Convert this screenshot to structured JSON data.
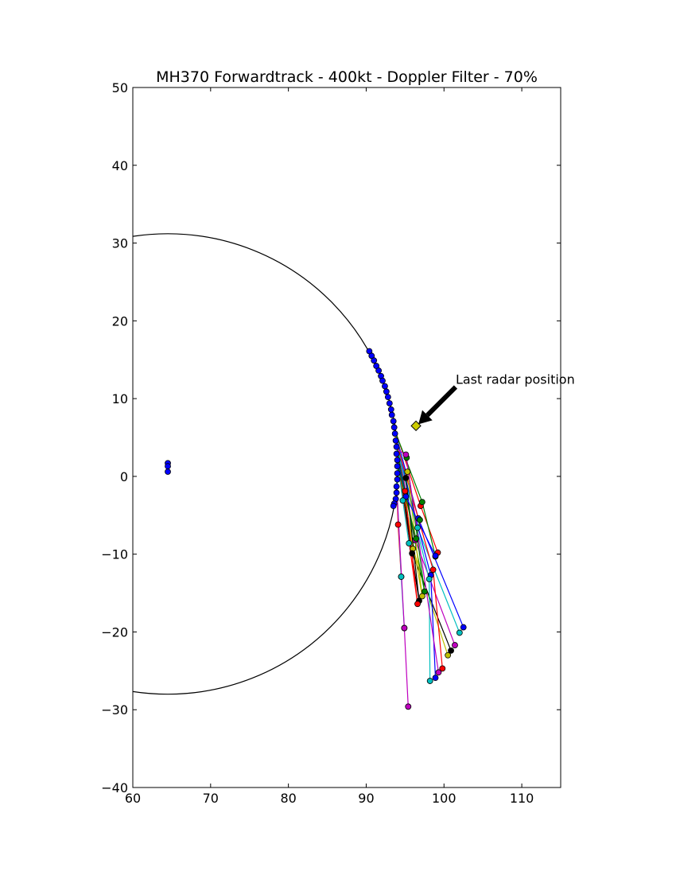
{
  "chart_data": {
    "type": "scatter",
    "title": "MH370 Forwardtrack - 400kt - Doppler Filter - 70%",
    "xlabel": "",
    "ylabel": "",
    "xlim": [
      60,
      115
    ],
    "ylim": [
      -40,
      50
    ],
    "xticks": [
      60,
      70,
      80,
      90,
      100,
      110
    ],
    "yticks": [
      -40,
      -30,
      -20,
      -10,
      0,
      10,
      20,
      30,
      40,
      50
    ],
    "yticklabels": [
      "−40",
      "−30",
      "−20",
      "−10",
      "0",
      "10",
      "20",
      "30",
      "40",
      "50"
    ],
    "grid": false,
    "legend": "none",
    "circle": {
      "center": [
        64.5,
        1.6
      ],
      "radius": 29.6,
      "color": "#000000"
    },
    "satellite_points": [
      {
        "x": 64.5,
        "y": 1.7
      },
      {
        "x": 64.5,
        "y": 1.3
      },
      {
        "x": 64.5,
        "y": 0.6
      }
    ],
    "arc_points": [
      {
        "x": 90.4,
        "y": 16.1
      },
      {
        "x": 90.7,
        "y": 15.5
      },
      {
        "x": 91.0,
        "y": 14.9
      },
      {
        "x": 91.3,
        "y": 14.2
      },
      {
        "x": 91.6,
        "y": 13.6
      },
      {
        "x": 91.9,
        "y": 12.9
      },
      {
        "x": 92.1,
        "y": 12.3
      },
      {
        "x": 92.4,
        "y": 11.6
      },
      {
        "x": 92.6,
        "y": 10.9
      },
      {
        "x": 92.8,
        "y": 10.2
      },
      {
        "x": 93.0,
        "y": 9.4
      },
      {
        "x": 93.2,
        "y": 8.6
      },
      {
        "x": 93.3,
        "y": 7.9
      },
      {
        "x": 93.5,
        "y": 7.1
      },
      {
        "x": 93.6,
        "y": 6.3
      },
      {
        "x": 93.7,
        "y": 5.5
      },
      {
        "x": 93.8,
        "y": 4.6
      },
      {
        "x": 93.9,
        "y": 3.8
      },
      {
        "x": 93.9,
        "y": 2.9
      },
      {
        "x": 94.0,
        "y": 2.1
      },
      {
        "x": 94.0,
        "y": 1.3
      },
      {
        "x": 94.0,
        "y": 0.4
      },
      {
        "x": 94.0,
        "y": -0.4
      },
      {
        "x": 93.9,
        "y": -1.3
      },
      {
        "x": 93.9,
        "y": -2.1
      },
      {
        "x": 93.8,
        "y": -2.9
      },
      {
        "x": 93.6,
        "y": -3.5
      },
      {
        "x": 93.5,
        "y": -3.8
      }
    ],
    "last_radar": {
      "x": 96.4,
      "y": 6.5,
      "color": "#cccc00"
    },
    "annotation": {
      "text": "Last radar position",
      "xytext": [
        101.5,
        11.5
      ]
    },
    "tracks": [
      {
        "color": "#ff0000",
        "points": [
          {
            "x": 93.6,
            "y": 6.3
          },
          {
            "x": 97.0,
            "y": -3.8
          },
          {
            "x": 99.2,
            "y": -9.8
          }
        ]
      },
      {
        "color": "#0000ff",
        "points": [
          {
            "x": 93.5,
            "y": 6.6
          },
          {
            "x": 96.7,
            "y": -5.4
          },
          {
            "x": 102.5,
            "y": -19.4
          }
        ]
      },
      {
        "color": "#00bfbf",
        "points": [
          {
            "x": 93.4,
            "y": 6.9
          },
          {
            "x": 96.6,
            "y": -6.6
          },
          {
            "x": 102.0,
            "y": -20.1
          }
        ]
      },
      {
        "color": "#008000",
        "points": [
          {
            "x": 93.6,
            "y": 6.1
          },
          {
            "x": 97.2,
            "y": -3.3
          },
          {
            "x": 98.9,
            "y": -10.3
          }
        ]
      },
      {
        "color": "#bf00bf",
        "points": [
          {
            "x": 93.7,
            "y": 5.6
          },
          {
            "x": 96.3,
            "y": -8.2
          },
          {
            "x": 101.4,
            "y": -21.7
          }
        ]
      },
      {
        "color": "#bfbf00",
        "points": [
          {
            "x": 93.7,
            "y": 5.3
          },
          {
            "x": 96.0,
            "y": -9.3
          },
          {
            "x": 100.5,
            "y": -23.0
          }
        ]
      },
      {
        "color": "#000000",
        "points": [
          {
            "x": 93.8,
            "y": 5.0
          },
          {
            "x": 95.9,
            "y": -9.9
          },
          {
            "x": 100.9,
            "y": -22.4
          }
        ]
      },
      {
        "color": "#ff0000",
        "points": [
          {
            "x": 93.8,
            "y": 4.7
          },
          {
            "x": 98.6,
            "y": -12.0
          },
          {
            "x": 99.8,
            "y": -24.7
          }
        ]
      },
      {
        "color": "#0000ff",
        "points": [
          {
            "x": 93.8,
            "y": 4.4
          },
          {
            "x": 98.3,
            "y": -12.7
          },
          {
            "x": 98.9,
            "y": -25.9
          }
        ]
      },
      {
        "color": "#00bfbf",
        "points": [
          {
            "x": 93.9,
            "y": 4.1
          },
          {
            "x": 98.1,
            "y": -13.2
          },
          {
            "x": 98.2,
            "y": -26.3
          }
        ]
      },
      {
        "color": "#008000",
        "points": [
          {
            "x": 93.9,
            "y": 3.8
          },
          {
            "x": 97.5,
            "y": -14.8
          },
          {
            "x": 95.2,
            "y": 2.4
          }
        ]
      },
      {
        "color": "#bf00bf",
        "points": [
          {
            "x": 93.9,
            "y": 3.5
          },
          {
            "x": 95.1,
            "y": 2.8
          },
          {
            "x": 99.3,
            "y": -25.2
          }
        ]
      },
      {
        "color": "#bfbf00",
        "points": [
          {
            "x": 93.9,
            "y": 3.2
          },
          {
            "x": 97.2,
            "y": -15.4
          },
          {
            "x": 95.3,
            "y": 0.6
          }
        ]
      },
      {
        "color": "#000000",
        "points": [
          {
            "x": 93.9,
            "y": 2.9
          },
          {
            "x": 96.8,
            "y": -16.0
          },
          {
            "x": 95.1,
            "y": -0.2
          }
        ]
      },
      {
        "color": "#ff0000",
        "points": [
          {
            "x": 94.0,
            "y": 2.6
          },
          {
            "x": 96.6,
            "y": -16.4
          },
          {
            "x": 95.0,
            "y": -1.9
          }
        ]
      },
      {
        "color": "#0000ff",
        "points": [
          {
            "x": 94.0,
            "y": 2.3
          },
          {
            "x": 95.1,
            "y": -2.6
          },
          {
            "x": 98.9,
            "y": -10.2
          }
        ]
      },
      {
        "color": "#00bfbf",
        "points": [
          {
            "x": 94.0,
            "y": 2.0
          },
          {
            "x": 94.7,
            "y": -3.1
          },
          {
            "x": 95.5,
            "y": -8.6
          }
        ]
      },
      {
        "color": "#008000",
        "points": [
          {
            "x": 94.0,
            "y": 1.7
          },
          {
            "x": 96.4,
            "y": -8.0
          },
          {
            "x": 96.9,
            "y": -5.6
          }
        ]
      },
      {
        "color": "#ff0000",
        "points": [
          {
            "x": 93.9,
            "y": 0.0
          },
          {
            "x": 94.1,
            "y": -6.2
          },
          {
            "x": 94.5,
            "y": -12.9
          }
        ]
      },
      {
        "color": "#00bfbf",
        "points": [
          {
            "x": 93.9,
            "y": -0.5
          },
          {
            "x": 94.5,
            "y": -12.9
          },
          {
            "x": 94.9,
            "y": -19.5
          }
        ]
      },
      {
        "color": "#bf00bf",
        "points": [
          {
            "x": 93.9,
            "y": -1.0
          },
          {
            "x": 94.9,
            "y": -19.5
          },
          {
            "x": 95.4,
            "y": -29.6
          }
        ]
      }
    ]
  }
}
